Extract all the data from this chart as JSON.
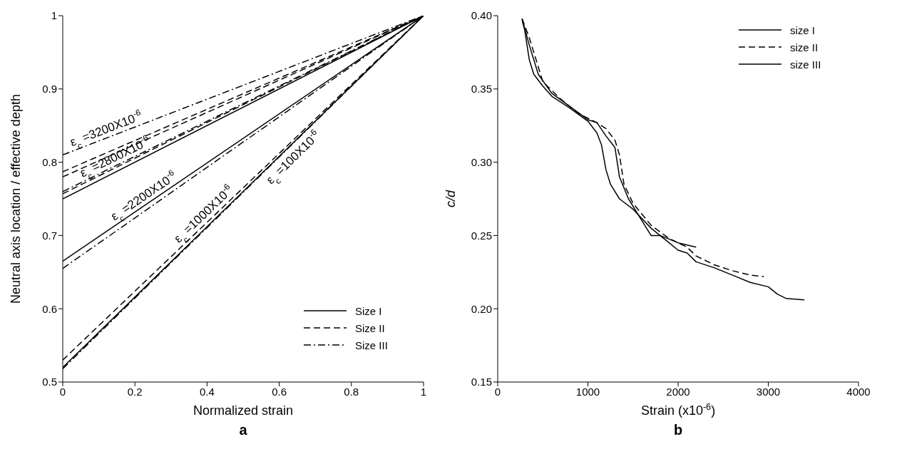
{
  "chart_data": [
    {
      "type": "line",
      "title": "a",
      "xlabel": "Normalized strain",
      "ylabel": "Neutral axis location / effective depth",
      "xlim": [
        0,
        1
      ],
      "xticks": [
        0,
        0.2,
        0.4,
        0.6,
        0.8,
        1
      ],
      "ylim": [
        0.5,
        1
      ],
      "yticks": [
        0.5,
        0.6,
        0.7,
        0.8,
        0.9,
        1
      ],
      "legend": "bottom right",
      "marker": "none",
      "series": [
        {
          "name": "Size I",
          "color": "#000000",
          "line_style": "solid",
          "x": [
            0,
            1
          ],
          "values": [
            0.75,
            1
          ]
        },
        {
          "color": "#000000",
          "line_style": "solid",
          "x": [
            0,
            1
          ],
          "values": [
            0.665,
            1
          ]
        },
        {
          "color": "#000000",
          "line_style": "solid",
          "x": [
            0,
            1
          ],
          "values": [
            0.52,
            1
          ]
        },
        {
          "name": "Size II",
          "color": "#000000",
          "line_style": "dashed",
          "x": [
            0,
            1
          ],
          "values": [
            0.787,
            1
          ]
        },
        {
          "color": "#000000",
          "line_style": "dashed",
          "x": [
            0,
            1
          ],
          "values": [
            0.78,
            1
          ]
        },
        {
          "color": "#000000",
          "line_style": "dashed",
          "x": [
            0,
            1
          ],
          "values": [
            0.757,
            1
          ]
        },
        {
          "color": "#000000",
          "line_style": "dashed",
          "x": [
            0,
            1
          ],
          "values": [
            0.53,
            1
          ]
        },
        {
          "name": "Size III",
          "color": "#000000",
          "line_style": "dashdot",
          "x": [
            0,
            1
          ],
          "values": [
            0.81,
            1
          ]
        },
        {
          "color": "#000000",
          "line_style": "dashdot",
          "x": [
            0,
            1
          ],
          "values": [
            0.76,
            1
          ]
        },
        {
          "color": "#000000",
          "line_style": "dashdot",
          "x": [
            0,
            1
          ],
          "values": [
            0.655,
            1
          ]
        },
        {
          "color": "#000000",
          "line_style": "dashdot",
          "x": [
            0,
            1
          ],
          "values": [
            0.518,
            1
          ]
        }
      ],
      "annotations": [
        {
          "text": "ε$_{c}$ =3200X10$^{-6}$",
          "x": 0.03,
          "y": 0.816
        },
        {
          "text": "ε$_{c}$ =2800X10$^{-6}$",
          "x": 0.06,
          "y": 0.774
        },
        {
          "text": "ε$_{c}$ =2200X10$^{-6}$",
          "x": 0.15,
          "y": 0.715
        },
        {
          "text": "ε$_{c}$ =1000X10$^{-6}$",
          "x": 0.33,
          "y": 0.685
        },
        {
          "text": "ε$_{c}$ =100X10$^{-6}$",
          "x": 0.55,
          "y": 0.783
        }
      ]
    },
    {
      "type": "line",
      "title": "b",
      "xlabel": "Strain (x10$^{-6}$)",
      "ylabel": "c/d",
      "xlim": [
        0,
        4000
      ],
      "xticks": [
        0,
        1000,
        2000,
        3000,
        4000
      ],
      "ylim": [
        0.15,
        0.4
      ],
      "yticks": [
        {
          "value": 0.15,
          "label": "0.15"
        },
        {
          "value": 0.2,
          "label": "0.20"
        },
        {
          "value": 0.25,
          "label": "0.25"
        },
        {
          "value": 0.3,
          "label": "0.30"
        },
        {
          "value": 0.35,
          "label": "0.35"
        },
        {
          "value": 0.4,
          "label": "0.40"
        }
      ],
      "legend": "top right",
      "marker": "none",
      "series": [
        {
          "name": "size I",
          "color": "#000000",
          "line_style": "solid",
          "x": [
            270,
            350,
            450,
            600,
            800,
            1000,
            1100,
            1200,
            1300,
            1350,
            1450,
            1550,
            1700,
            1800,
            2000,
            2200
          ],
          "values": [
            0.398,
            0.38,
            0.36,
            0.347,
            0.338,
            0.329,
            0.327,
            0.318,
            0.31,
            0.29,
            0.275,
            0.265,
            0.25,
            0.25,
            0.245,
            0.242
          ]
        },
        {
          "name": "size II",
          "color": "#000000",
          "line_style": "dashed",
          "x": [
            270,
            350,
            400,
            450,
            500,
            700,
            900,
            1000,
            1100,
            1200,
            1300,
            1350,
            1400,
            1500,
            1700,
            1900,
            2100,
            2200,
            2400,
            2600,
            2800,
            2950
          ],
          "values": [
            0.398,
            0.385,
            0.375,
            0.365,
            0.355,
            0.343,
            0.333,
            0.33,
            0.327,
            0.323,
            0.315,
            0.305,
            0.285,
            0.272,
            0.257,
            0.248,
            0.242,
            0.236,
            0.23,
            0.226,
            0.223,
            0.222
          ]
        },
        {
          "name": "size III",
          "color": "#000000",
          "line_style": "solid",
          "x": [
            270,
            300,
            350,
            400,
            500,
            600,
            800,
            1000,
            1100,
            1150,
            1200,
            1250,
            1350,
            1500,
            1700,
            1900,
            2000,
            2100,
            2200,
            2400,
            2600,
            2800,
            3000,
            3100,
            3200,
            3400
          ],
          "values": [
            0.397,
            0.39,
            0.37,
            0.36,
            0.352,
            0.345,
            0.337,
            0.328,
            0.32,
            0.312,
            0.295,
            0.285,
            0.275,
            0.268,
            0.255,
            0.245,
            0.24,
            0.238,
            0.232,
            0.228,
            0.223,
            0.218,
            0.215,
            0.21,
            0.207,
            0.206
          ]
        }
      ]
    }
  ]
}
